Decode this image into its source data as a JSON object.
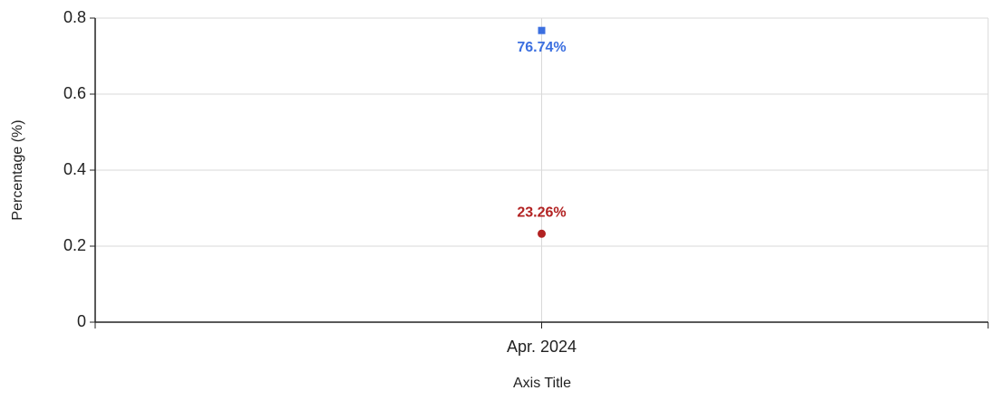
{
  "chart_data": {
    "type": "line",
    "categories": [
      "Apr. 2024"
    ],
    "series": [
      {
        "color": "#3b6fe0",
        "marker": "square",
        "label_position": "below",
        "values": [
          0.7674
        ],
        "value_labels": [
          "76.74%"
        ]
      },
      {
        "color": "#b22222",
        "marker": "circle",
        "label_position": "above",
        "values": [
          0.2326
        ],
        "value_labels": [
          "23.26%"
        ]
      }
    ],
    "ylim": [
      0,
      0.8
    ],
    "yticks": [
      0,
      0.2,
      0.4,
      0.6,
      0.8
    ],
    "y_label": "Percentage (%)",
    "x_label": "Axis Title",
    "grid": true
  }
}
